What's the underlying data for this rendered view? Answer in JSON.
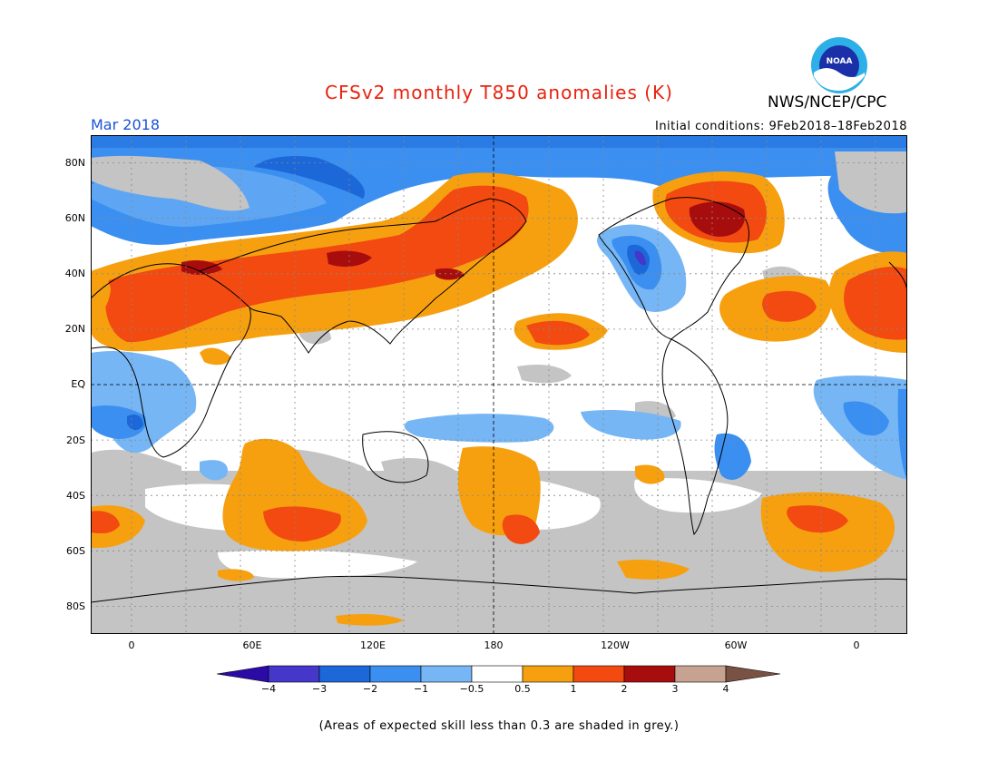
{
  "title": "CFSv2 monthly T850 anomalies (K)",
  "agency": "NWS/NCEP/CPC",
  "logo_text": "NOAA",
  "month": "Mar 2018",
  "initial_conditions": "Initial conditions: 9Feb2018–18Feb2018",
  "footnote": "(Areas of expected skill less than 0.3 are shaded in grey.)",
  "lat_labels": [
    "80N",
    "60N",
    "40N",
    "20N",
    "EQ",
    "20S",
    "40S",
    "60S",
    "80S"
  ],
  "lon_labels": [
    "0",
    "60E",
    "120E",
    "180",
    "120W",
    "60W",
    "0"
  ],
  "colorbar": {
    "labels": [
      "−4",
      "−3",
      "−2",
      "−1",
      "−0.5",
      "0.5",
      "1",
      "2",
      "3",
      "4"
    ],
    "colors": {
      "lt_-4": "#2b0aa8",
      "-4_-3": "#4437c9",
      "-3_-2": "#1c68d8",
      "-2_-1": "#3a8ff0",
      "-1_-0.5": "#76b6f5",
      "-0.5_0.5": "#ffffff",
      "0.5_1": "#f6a010",
      "1_2": "#f24a10",
      "2_3": "#a80d0d",
      "3_4": "#c8a290",
      "gt_4": "#7a5243"
    }
  },
  "grey_shade_color": "#c4c4c4"
}
